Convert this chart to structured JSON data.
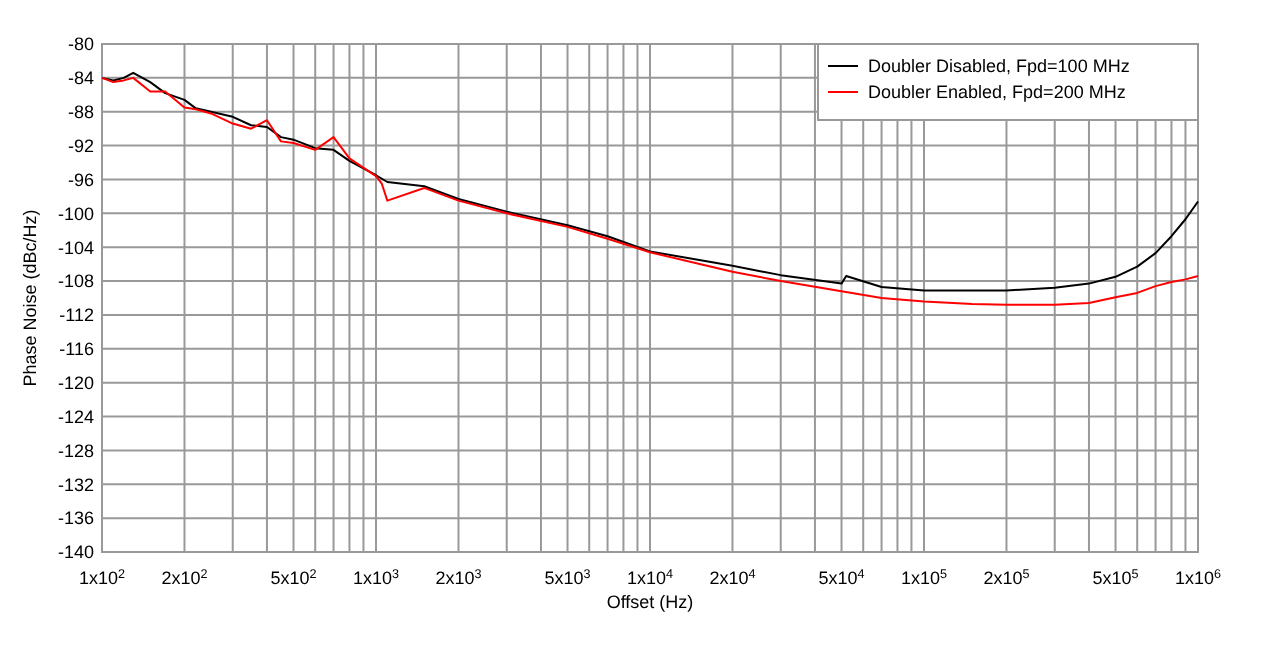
{
  "chart_data": {
    "type": "line",
    "xlabel": "Offset (Hz)",
    "ylabel": "Phase Noise (dBc/Hz)",
    "log": "x",
    "grid": true,
    "legend": "top right",
    "xlim": [
      100,
      1000000
    ],
    "ylim": [
      -140,
      -80
    ],
    "xticks": [
      {
        "value": 100,
        "label": "1x10$^{2}$"
      },
      {
        "value": 200,
        "label": "2x10$^{2}$"
      },
      {
        "value": 300,
        "label": null
      },
      {
        "value": 400,
        "label": null
      },
      {
        "value": 500,
        "label": "5x10$^{2}$"
      },
      {
        "value": 600,
        "label": null
      },
      {
        "value": 700,
        "label": null
      },
      {
        "value": 800,
        "label": null
      },
      {
        "value": 900,
        "label": null
      },
      {
        "value": 1000,
        "label": "1x10$^{3}$"
      },
      {
        "value": 2000,
        "label": "2x10$^{3}$"
      },
      {
        "value": 3000,
        "label": null
      },
      {
        "value": 4000,
        "label": null
      },
      {
        "value": 5000,
        "label": "5x10$^{3}$"
      },
      {
        "value": 6000,
        "label": null
      },
      {
        "value": 7000,
        "label": null
      },
      {
        "value": 8000,
        "label": null
      },
      {
        "value": 9000,
        "label": null
      },
      {
        "value": 10000,
        "label": "1x10$^{4}$"
      },
      {
        "value": 20000,
        "label": "2x10$^{4}$"
      },
      {
        "value": 30000,
        "label": null
      },
      {
        "value": 40000,
        "label": null
      },
      {
        "value": 50000,
        "label": "5x10$^{4}$"
      },
      {
        "value": 60000,
        "label": null
      },
      {
        "value": 70000,
        "label": null
      },
      {
        "value": 80000,
        "label": null
      },
      {
        "value": 90000,
        "label": null
      },
      {
        "value": 100000,
        "label": "1x10$^{5}$"
      },
      {
        "value": 200000,
        "label": "2x10$^{5}$"
      },
      {
        "value": 300000,
        "label": null
      },
      {
        "value": 400000,
        "label": null
      },
      {
        "value": 500000,
        "label": "5x10$^{5}$"
      },
      {
        "value": 600000,
        "label": null
      },
      {
        "value": 700000,
        "label": null
      },
      {
        "value": 800000,
        "label": null
      },
      {
        "value": 900000,
        "label": null
      },
      {
        "value": 1000000,
        "label": "1x10$^{6}$"
      }
    ],
    "yticks": [
      -140,
      -136,
      -132,
      -128,
      -124,
      -120,
      -116,
      -112,
      -108,
      -104,
      -100,
      -96,
      -92,
      -88,
      -84,
      -80
    ],
    "series": [
      {
        "name": "Doubler Disabled, Fpd=100 MHz",
        "color": "#000000",
        "x": [
          100,
          110,
          120,
          130,
          150,
          170,
          200,
          220,
          250,
          300,
          350,
          400,
          450,
          500,
          600,
          700,
          800,
          1000,
          1100,
          1500,
          2000,
          3000,
          5000,
          7000,
          10000,
          20000,
          30000,
          50000,
          52000,
          70000,
          100000,
          150000,
          200000,
          300000,
          400000,
          500000,
          600000,
          700000,
          800000,
          900000,
          1000000
        ],
        "values": [
          -84,
          -84.3,
          -84,
          -83.4,
          -84.5,
          -85.8,
          -86.6,
          -87.6,
          -88,
          -88.6,
          -89.6,
          -89.8,
          -91,
          -91.3,
          -92.3,
          -92.5,
          -93.8,
          -95.5,
          -96.3,
          -96.8,
          -98.3,
          -99.8,
          -101.4,
          -102.7,
          -104.5,
          -106.2,
          -107.3,
          -108.3,
          -107.4,
          -108.7,
          -109.1,
          -109.1,
          -109.1,
          -108.8,
          -108.3,
          -107.5,
          -106.3,
          -104.7,
          -102.7,
          -100.7,
          -98.6
        ]
      },
      {
        "name": "Doubler Enabled, Fpd=200 MHz",
        "color": "#ff0000",
        "x": [
          100,
          110,
          120,
          130,
          150,
          170,
          200,
          220,
          250,
          300,
          350,
          400,
          450,
          500,
          600,
          700,
          800,
          1000,
          1050,
          1100,
          1500,
          2000,
          3000,
          5000,
          7000,
          10000,
          20000,
          30000,
          50000,
          70000,
          100000,
          150000,
          200000,
          300000,
          400000,
          500000,
          600000,
          700000,
          800000,
          900000,
          1000000
        ],
        "values": [
          -84,
          -84.5,
          -84.3,
          -84,
          -85.6,
          -85.6,
          -87.5,
          -87.7,
          -88.2,
          -89.4,
          -90,
          -89,
          -91.5,
          -91.7,
          -92.5,
          -91,
          -93.5,
          -95.6,
          -96.5,
          -98.5,
          -97,
          -98.5,
          -100,
          -101.6,
          -103,
          -104.6,
          -106.9,
          -108,
          -109.2,
          -110,
          -110.4,
          -110.7,
          -110.8,
          -110.8,
          -110.6,
          -109.9,
          -109.4,
          -108.6,
          -108.1,
          -107.8,
          -107.4
        ]
      }
    ]
  }
}
